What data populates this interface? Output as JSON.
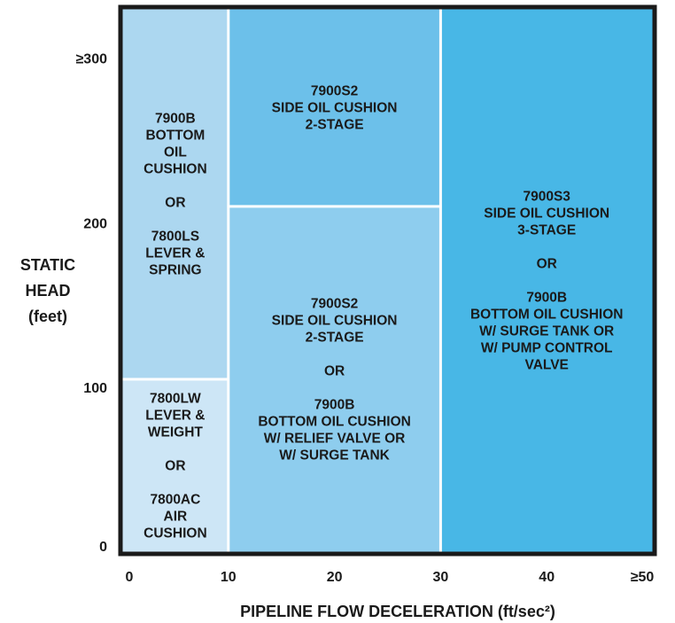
{
  "chart_data": {
    "type": "region-map",
    "x_axis": {
      "label": "PIPELINE FLOW DECELERATION (ft/sec²)",
      "range": [
        0,
        50
      ],
      "ticks": [
        {
          "value": 0,
          "label": "0"
        },
        {
          "value": 10,
          "label": "10"
        },
        {
          "value": 20,
          "label": "20"
        },
        {
          "value": 30,
          "label": "30"
        },
        {
          "value": 40,
          "label": "40"
        },
        {
          "value": 50,
          "label": "≥50"
        }
      ]
    },
    "y_axis": {
      "label_lines": [
        "STATIC",
        "HEAD",
        "(feet)"
      ],
      "range": [
        0,
        330
      ],
      "ticks": [
        {
          "value": 0,
          "label": "0"
        },
        {
          "value": 100,
          "label": "100"
        },
        {
          "value": 200,
          "label": "200"
        },
        {
          "value": 300,
          "label": "≥300"
        }
      ]
    },
    "regions": [
      {
        "x": [
          0,
          10
        ],
        "y": [
          105,
          330
        ],
        "color": "#acd7f0",
        "lines": [
          "7900B",
          "BOTTOM",
          "OIL",
          "CUSHION",
          "",
          "OR",
          "",
          "7800LS",
          "LEVER &",
          "SPRING"
        ]
      },
      {
        "x": [
          0,
          10
        ],
        "y": [
          0,
          105
        ],
        "color": "#cde6f6",
        "lines": [
          "7800LW",
          "LEVER &",
          "WEIGHT",
          "",
          "OR",
          "",
          "7800AC",
          "AIR",
          "CUSHION"
        ]
      },
      {
        "x": [
          10,
          30
        ],
        "y": [
          210,
          330
        ],
        "color": "#6cc0ea",
        "lines": [
          "7900S2",
          "SIDE OIL CUSHION",
          "2-STAGE"
        ]
      },
      {
        "x": [
          10,
          30
        ],
        "y": [
          0,
          210
        ],
        "color": "#8ecdee",
        "lines": [
          "7900S2",
          "SIDE OIL CUSHION",
          "2-STAGE",
          "",
          "OR",
          "",
          "7900B",
          "BOTTOM OIL CUSHION",
          "W/ RELIEF VALVE OR",
          "W/ SURGE TANK"
        ]
      },
      {
        "x": [
          30,
          50
        ],
        "y": [
          0,
          330
        ],
        "color": "#48b7e6",
        "lines": [
          "7900S3",
          "SIDE OIL CUSHION",
          "3-STAGE",
          "",
          "OR",
          "",
          "7900B",
          "BOTTOM OIL CUSHION",
          "W/ SURGE TANK OR",
          "W/ PUMP CONTROL",
          "VALVE"
        ]
      }
    ],
    "grid": false,
    "legend": "none"
  }
}
